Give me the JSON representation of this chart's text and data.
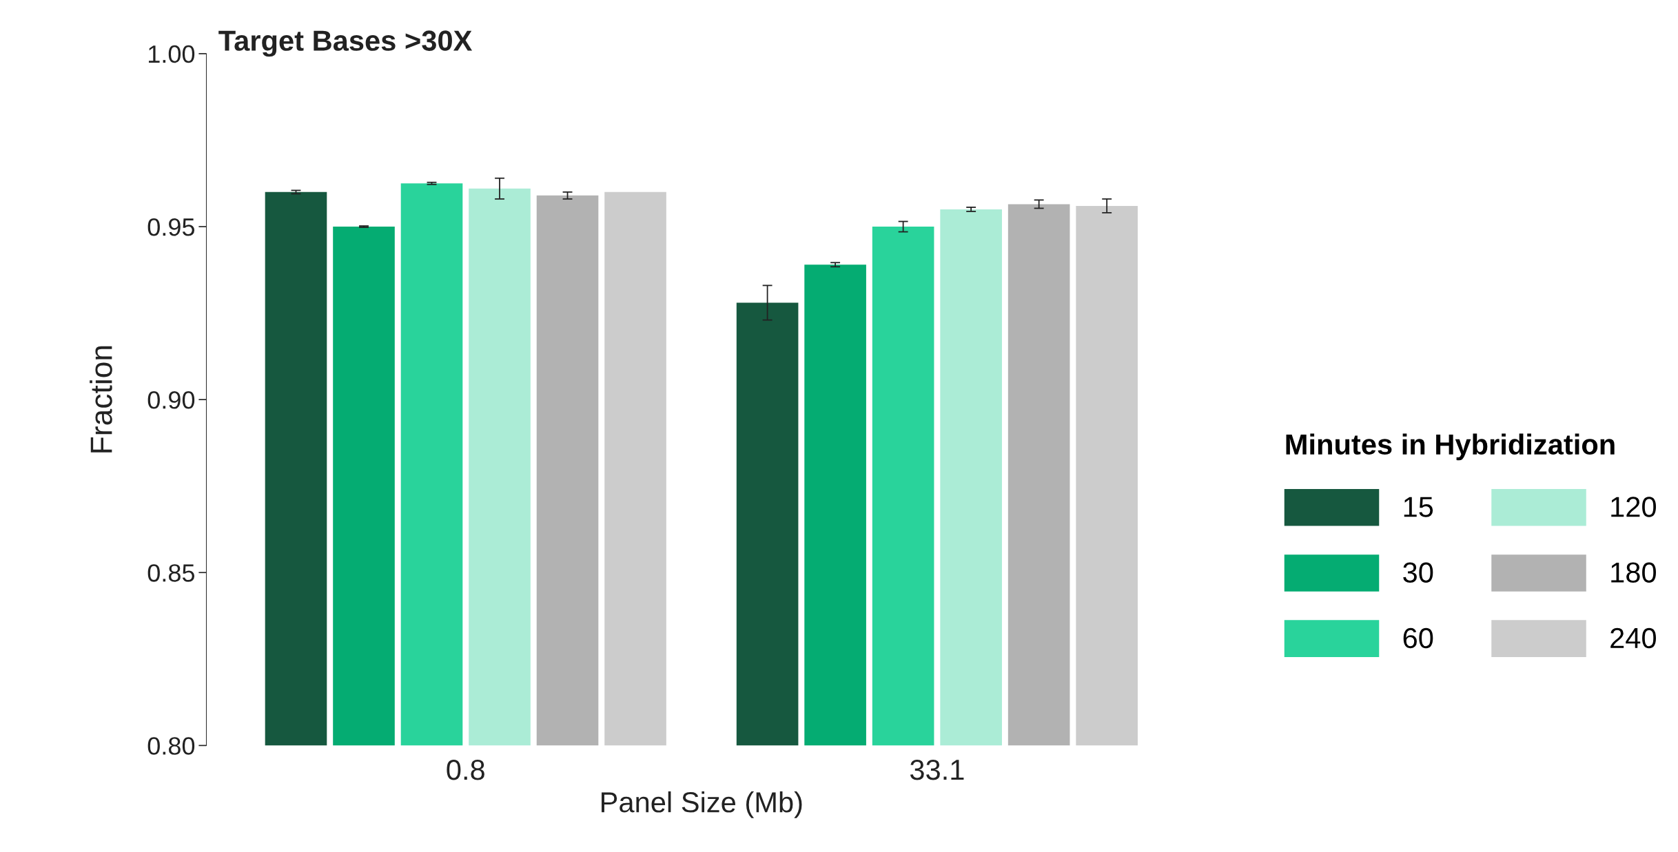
{
  "chart_data": {
    "type": "bar",
    "title": "Target Bases >30X",
    "xlabel": "Panel Size (Mb)",
    "ylabel": "Fraction",
    "legend_title": "Minutes in Hybridization",
    "categories": [
      "0.8",
      "33.1"
    ],
    "series": [
      {
        "name": "15",
        "color": "#16583f",
        "values": [
          0.96,
          0.928
        ],
        "errors": [
          0.0005,
          0.005
        ]
      },
      {
        "name": "30",
        "color": "#05ac72",
        "values": [
          0.95,
          0.939
        ],
        "errors": [
          0.0002,
          0.0006
        ]
      },
      {
        "name": "60",
        "color": "#29d39b",
        "values": [
          0.9625,
          0.95
        ],
        "errors": [
          0.0003,
          0.0015
        ]
      },
      {
        "name": "120",
        "color": "#abecd6",
        "values": [
          0.961,
          0.955
        ],
        "errors": [
          0.003,
          0.0006
        ]
      },
      {
        "name": "180",
        "color": "#b2b2b2",
        "values": [
          0.959,
          0.9565
        ],
        "errors": [
          0.001,
          0.0012
        ]
      },
      {
        "name": "240",
        "color": "#cccccc",
        "values": [
          0.96,
          0.956
        ],
        "errors": [
          null,
          0.002
        ]
      }
    ],
    "ylim": [
      0.8,
      1.0
    ],
    "yticks": [
      {
        "value": 0.8,
        "label": "0.80"
      },
      {
        "value": 0.85,
        "label": "0.85"
      },
      {
        "value": 0.9,
        "label": "0.90"
      },
      {
        "value": 0.95,
        "label": "0.95"
      },
      {
        "value": 1.0,
        "label": "1.00"
      }
    ],
    "grid": false,
    "legend": "right"
  }
}
